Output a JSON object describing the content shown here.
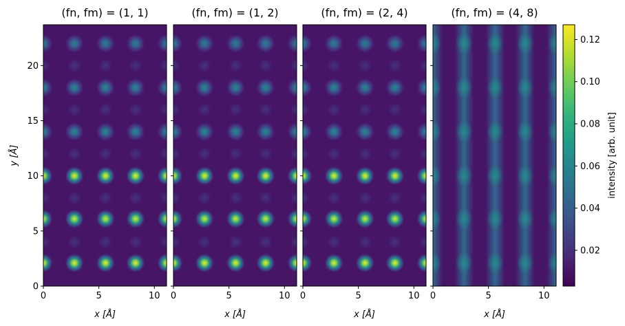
{
  "chart_data": {
    "type": "heatmap",
    "panels": [
      {
        "title": "(fn, fm) = (1, 1)",
        "fn": 1,
        "fm": 1
      },
      {
        "title": "(fn, fm) = (1, 2)",
        "fn": 1,
        "fm": 2
      },
      {
        "title": "(fn, fm) = (2, 4)",
        "fn": 2,
        "fm": 4
      },
      {
        "title": "(fn, fm) = (4, 8)",
        "fn": 4,
        "fm": 8
      }
    ],
    "xlabel": "x [Å]",
    "ylabel": "y [Å]",
    "xlim": [
      0,
      11.1
    ],
    "ylim": [
      0,
      23.7
    ],
    "xticks": [
      0,
      5,
      10
    ],
    "yticks": [
      0,
      5,
      10,
      15,
      20
    ],
    "atom_columns_x": [
      0.0,
      2.8,
      5.6,
      8.3,
      11.1
    ],
    "atom_rows": [
      {
        "y": 2.1,
        "peak": 0.125
      },
      {
        "y": 6.1,
        "peak": 0.12
      },
      {
        "y": 10.0,
        "peak": 0.125
      },
      {
        "y": 14.0,
        "peak": 0.06
      },
      {
        "y": 18.0,
        "peak": 0.06
      },
      {
        "y": 22.0,
        "peak": 0.055
      }
    ],
    "weak_rows_y": [
      4.0,
      8.0,
      12.0,
      16.0,
      20.0
    ],
    "weak_peak": 0.022,
    "background": 0.01,
    "panel4": {
      "column_intensity": 0.045,
      "peak_intensity": 0.062
    },
    "colorbar": {
      "label": "intensity [arb. unit]",
      "min": 0.003,
      "max": 0.127,
      "ticks": [
        0.02,
        0.04,
        0.06,
        0.08,
        0.1,
        0.12
      ],
      "tick_labels": [
        "0.02",
        "0.04",
        "0.06",
        "0.08",
        "0.10",
        "0.12"
      ],
      "colormap": "viridis"
    }
  }
}
